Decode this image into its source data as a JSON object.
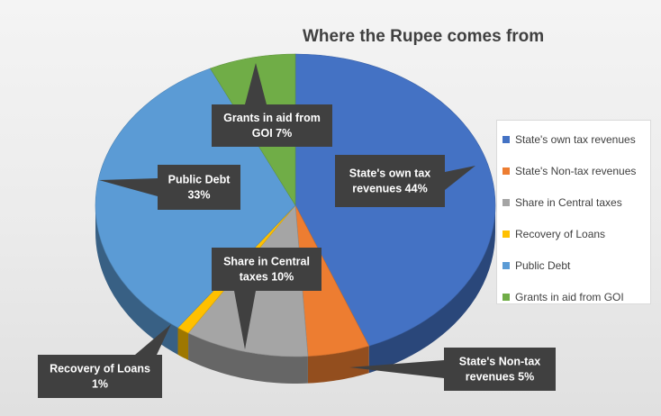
{
  "chart_data": {
    "type": "pie",
    "title": "Where the Rupee comes from",
    "legend_position": "right",
    "slices": [
      {
        "name": "State's own tax revenues",
        "value": 44,
        "color": "#4472C4",
        "callout": [
          "State's own tax",
          "revenues 44%"
        ]
      },
      {
        "name": "State's Non-tax revenues",
        "value": 5,
        "color": "#ED7D31",
        "callout": [
          "State's Non-tax",
          "revenues 5%"
        ]
      },
      {
        "name": "Share in Central taxes",
        "value": 10,
        "color": "#A5A5A5",
        "callout": [
          "Share in Central",
          "taxes 10%"
        ]
      },
      {
        "name": "Recovery of Loans",
        "value": 1,
        "color": "#FFC000",
        "callout": [
          "Recovery of Loans",
          "1%"
        ]
      },
      {
        "name": "Public Debt",
        "value": 33,
        "color": "#5B9BD5",
        "callout": [
          "Public Debt",
          "33%"
        ]
      },
      {
        "name": "Grants in aid from GOI",
        "value": 7,
        "color": "#70AD47",
        "callout": [
          "Grants in aid from",
          "GOI 7%"
        ]
      }
    ]
  }
}
